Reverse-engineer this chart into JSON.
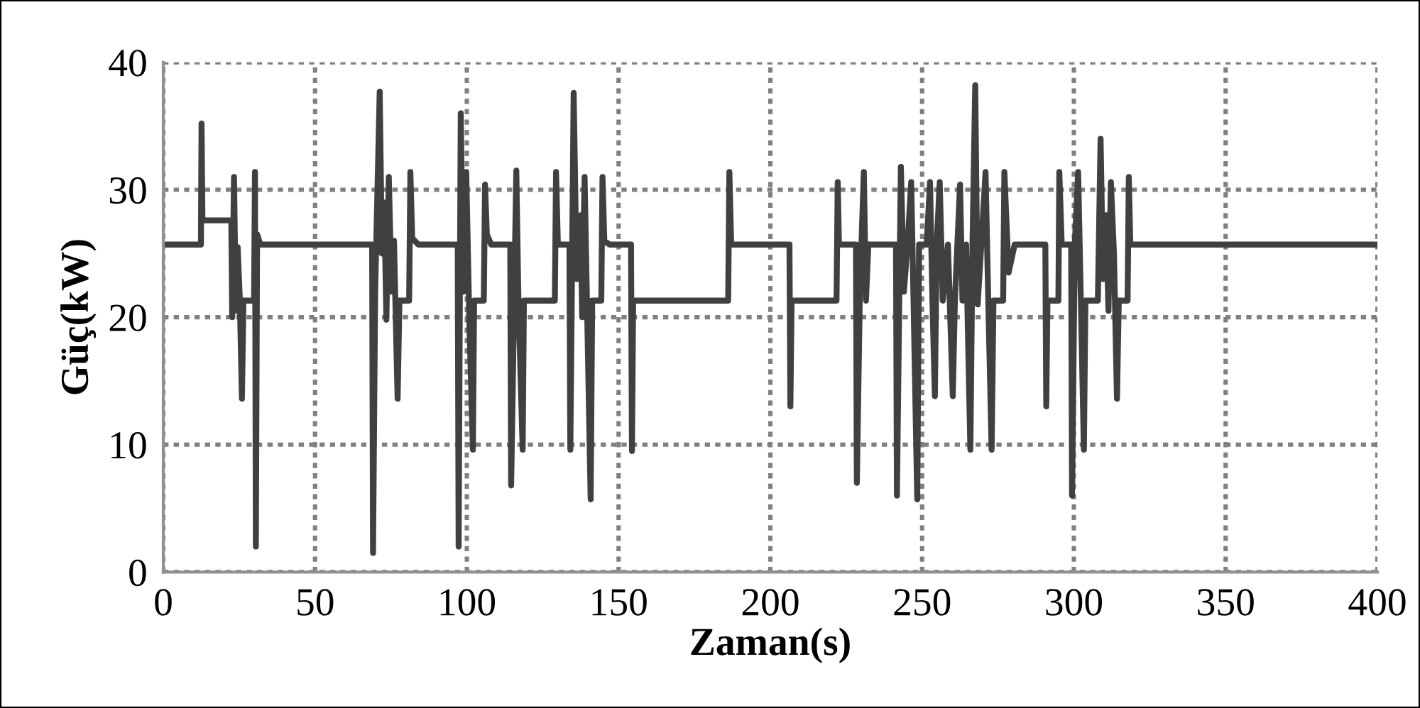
{
  "chart_data": {
    "type": "line",
    "xlabel": "Zaman(s)",
    "ylabel": "Güç(kW)",
    "xlim": [
      0,
      400
    ],
    "ylim": [
      0,
      40
    ],
    "xticks": [
      0,
      50,
      100,
      150,
      200,
      250,
      300,
      350,
      400
    ],
    "yticks": [
      0,
      10,
      20,
      30,
      40
    ],
    "grid": true,
    "legend": false,
    "marker": "none",
    "line_style": "solid",
    "series": [
      {
        "color": "#404040",
        "x": [
          0,
          12.4,
          12.6,
          12.9,
          22.4,
          22.7,
          23.3,
          23.9,
          24.5,
          25.2,
          25.9,
          26.4,
          29.9,
          30.2,
          30.5,
          30.9,
          32.0,
          68.8,
          69.1,
          69.8,
          71.3,
          72.0,
          72.8,
          73.5,
          74.3,
          75.2,
          76.0,
          77.2,
          77.8,
          81.0,
          81.4,
          82.0,
          84.0,
          97.0,
          97.3,
          98.0,
          98.8,
          99.8,
          100.8,
          102.0,
          102.4,
          105.6,
          106.0,
          106.6,
          108.0,
          114.3,
          114.6,
          116.3,
          117.0,
          118.4,
          118.8,
          129.0,
          129.4,
          130.0,
          133.8,
          134.1,
          135.2,
          136.2,
          137.5,
          138.0,
          138.8,
          139.6,
          140.8,
          141.3,
          144.3,
          144.7,
          145.3,
          147.0,
          154.1,
          154.4,
          154.8,
          186.1,
          186.5,
          187.1,
          206.3,
          206.6,
          207.0,
          221.8,
          222.2,
          222.6,
          228.2,
          228.5,
          229.5,
          230.8,
          231.5,
          232.3,
          241.4,
          241.7,
          243.0,
          244.0,
          245.2,
          246.4,
          247.2,
          248.4,
          249.0,
          251.5,
          252.6,
          253.4,
          254.2,
          254.8,
          255.8,
          256.8,
          258.5,
          260.1,
          260.8,
          262.5,
          263.3,
          264.5,
          265.9,
          266.6,
          267.5,
          268.3,
          269.5,
          270.9,
          271.8,
          272.9,
          273.5,
          276.7,
          277.1,
          278.5,
          280.5,
          290.6,
          290.9,
          291.3,
          294.9,
          295.2,
          296.0,
          299.1,
          299.4,
          300.3,
          301.4,
          302.3,
          303.3,
          303.8,
          307.9,
          308.8,
          309.6,
          310.6,
          311.4,
          312.2,
          313.2,
          314.2,
          314.8,
          317.7,
          318.1,
          318.6,
          400
        ],
        "values": [
          25.7,
          25.7,
          35.2,
          27.6,
          27.6,
          20.0,
          31.0,
          20.5,
          25.5,
          21.5,
          13.6,
          21.3,
          21.3,
          31.4,
          2.0,
          26.5,
          25.7,
          25.7,
          1.5,
          22.0,
          37.7,
          25.0,
          29.0,
          19.8,
          31.0,
          22.0,
          26.0,
          13.6,
          21.3,
          21.3,
          31.4,
          26.2,
          25.7,
          25.7,
          2.0,
          36.0,
          22.0,
          31.4,
          20.0,
          9.6,
          21.3,
          21.3,
          30.4,
          26.5,
          25.7,
          25.7,
          6.8,
          31.5,
          21.3,
          9.6,
          21.3,
          21.3,
          31.4,
          25.7,
          25.7,
          9.6,
          37.6,
          23.0,
          28.0,
          20.0,
          31.0,
          21.0,
          5.7,
          21.3,
          21.3,
          31.0,
          26.0,
          25.7,
          25.7,
          9.5,
          21.3,
          21.3,
          31.4,
          25.7,
          25.7,
          13.0,
          21.3,
          21.3,
          30.6,
          25.7,
          25.7,
          7.0,
          22.0,
          31.4,
          21.3,
          25.7,
          25.7,
          6.0,
          31.8,
          22.0,
          25.7,
          30.6,
          21.0,
          5.7,
          25.7,
          25.7,
          30.6,
          21.3,
          13.8,
          25.7,
          30.6,
          21.3,
          25.7,
          13.8,
          21.3,
          30.4,
          21.3,
          25.7,
          9.6,
          25.7,
          38.2,
          21.0,
          25.7,
          31.4,
          21.3,
          9.6,
          21.3,
          21.3,
          31.4,
          23.5,
          25.7,
          25.7,
          13.0,
          21.3,
          21.3,
          31.4,
          25.7,
          25.7,
          6.0,
          25.7,
          31.4,
          21.3,
          9.6,
          21.3,
          21.3,
          34.0,
          23.0,
          28.0,
          20.5,
          30.6,
          25.0,
          13.6,
          21.3,
          21.3,
          31.0,
          25.7,
          25.7
        ]
      }
    ]
  }
}
